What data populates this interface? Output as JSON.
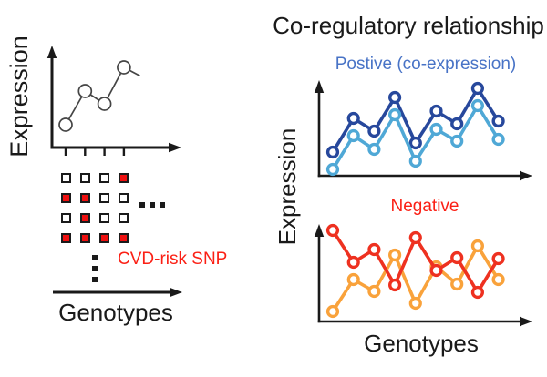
{
  "palette": {
    "ink": "#1a1a1a",
    "eqtl_line_gray": "#454545",
    "snp_red": "#ee0f0f",
    "label_red": "#fb2015",
    "subtitle_blue": "#4873c6",
    "positive_dark_blue": "#27489c",
    "positive_light_blue": "#4fa8d6",
    "negative_red": "#ee3120",
    "negative_orange": "#f9a23b"
  },
  "left_panel": {
    "y_axis_label": "Expression",
    "x_axis_label": "Genotypes",
    "snp_caption": "CVD-risk SNP",
    "genotype_grid_rows": [
      [
        "white",
        "white",
        "white",
        "red"
      ],
      [
        "red",
        "red",
        "white",
        "white"
      ],
      [
        "white",
        "red",
        "white",
        "white"
      ],
      [
        "red",
        "red",
        "red",
        "red"
      ]
    ],
    "horizontal_ellipsis_dots": 3,
    "vertical_ellipsis_dots": 3
  },
  "right_panel": {
    "title": "Co-regulatory relationship",
    "y_axis_label": "Expression",
    "x_axis_label": "Genotypes",
    "positive_plot_label": "Postive (co-expression)",
    "negative_plot_label": "Negative"
  },
  "chart_data": [
    {
      "id": "eqtl",
      "type": "line",
      "title": "",
      "xlabel": "Genotypes",
      "ylabel": "Expression",
      "x": [
        1,
        2,
        3,
        4
      ],
      "ylim": [
        0,
        110
      ],
      "axis_ticks": true,
      "marker": "open-circle",
      "series": [
        {
          "name": "expression-by-genotype",
          "color": "#454545",
          "values": [
            25,
            62,
            48,
            88
          ],
          "tail_point": {
            "x": 4.8,
            "value": 79
          }
        }
      ]
    },
    {
      "id": "positive",
      "type": "line",
      "title": "Postive (co-expression)",
      "xlabel": "Genotypes",
      "ylabel": "Expression",
      "x": [
        1,
        2,
        3,
        4,
        5,
        6,
        7,
        8,
        9
      ],
      "ylim": [
        0,
        110
      ],
      "axis_ticks": false,
      "marker": "open-circle",
      "series": [
        {
          "name": "coexpressed-gene-dark-blue",
          "color": "#27489c",
          "values": [
            26,
            63,
            49,
            86,
            36,
            71,
            57,
            96,
            60
          ]
        },
        {
          "name": "coexpressed-gene-light-blue",
          "color": "#4fa8d6",
          "values": [
            7,
            44,
            29,
            67,
            16,
            51,
            38,
            77,
            40
          ]
        }
      ]
    },
    {
      "id": "negative",
      "type": "line",
      "title": "Negative",
      "xlabel": "Genotypes",
      "ylabel": "Expression",
      "x": [
        1,
        2,
        3,
        4,
        5,
        6,
        7,
        8,
        9
      ],
      "ylim": [
        0,
        110
      ],
      "axis_ticks": false,
      "marker": "open-circle",
      "series": [
        {
          "name": "anticorrelated-gene-orange",
          "color": "#f9a23b",
          "values": [
            11,
            46,
            33,
            73,
            20,
            60,
            41,
            83,
            46
          ]
        },
        {
          "name": "anticorrelated-gene-red",
          "color": "#ee3120",
          "values": [
            100,
            65,
            79,
            40,
            92,
            56,
            70,
            32,
            69
          ]
        }
      ]
    }
  ]
}
